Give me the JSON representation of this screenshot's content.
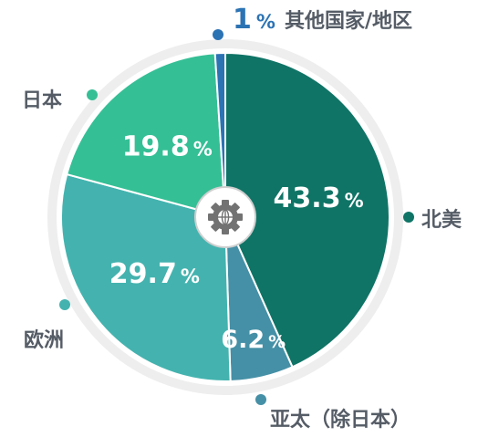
{
  "chart_data": {
    "type": "pie",
    "title": "",
    "categories": [
      "北美",
      "亚太（除日本）",
      "欧洲",
      "日本",
      "其他国家/地区"
    ],
    "values": [
      43.3,
      6.2,
      29.7,
      19.8,
      1
    ],
    "value_labels": [
      "43.3",
      "6.2",
      "29.7",
      "19.8",
      "1"
    ],
    "percent_sign": "%",
    "colors": [
      "#0f7466",
      "#4590a6",
      "#44b3af",
      "#35bf95",
      "#2c73b4"
    ],
    "legend_placement": "around"
  },
  "center_icon": "gear-icon"
}
